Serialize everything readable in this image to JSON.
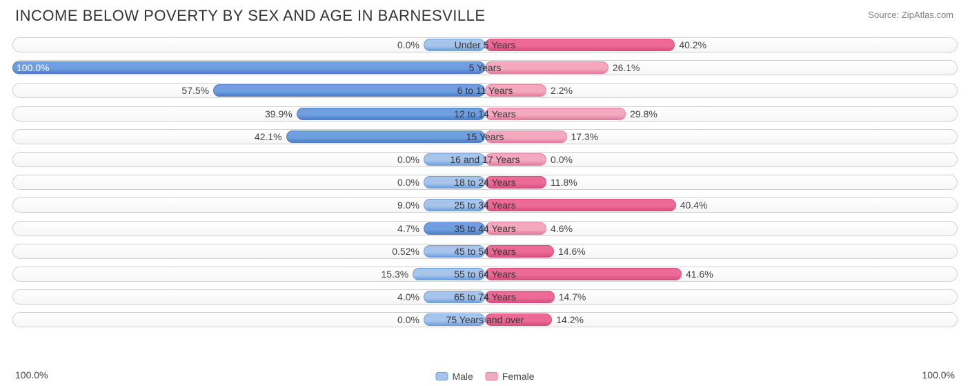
{
  "title": "INCOME BELOW POVERTY BY SEX AND AGE IN BARNESVILLE",
  "source": "Source: ZipAtlas.com",
  "chart": {
    "type": "diverging-bar",
    "axis_max": 100.0,
    "axis_label_left": "100.0%",
    "axis_label_right": "100.0%",
    "title_fontsize": 22,
    "label_fontsize": 14,
    "background_color": "#ffffff",
    "track_border_color": "#d0d0d0",
    "track_fill_top": "#ffffff",
    "track_fill_bottom": "#f6f6f6",
    "text_color": "#444444",
    "min_bar_pct": 13.0,
    "male": {
      "label": "Male",
      "fill": "#a7c4ea",
      "border": "#6f9fde",
      "highlight_fill": "#6f9fde",
      "highlight_border": "#4d7fc8"
    },
    "female": {
      "label": "Female",
      "fill": "#f3aac1",
      "border": "#e77ca0",
      "highlight_fill": "#ec6a95",
      "highlight_border": "#d94e7d"
    },
    "rows": [
      {
        "category": "Under 5 Years",
        "male": 0.0,
        "female": 40.2,
        "male_label": "0.0%",
        "female_label": "40.2%",
        "female_hl": true
      },
      {
        "category": "5 Years",
        "male": 100.0,
        "female": 26.1,
        "male_label": "100.0%",
        "female_label": "26.1%",
        "male_hl": true
      },
      {
        "category": "6 to 11 Years",
        "male": 57.5,
        "female": 2.2,
        "male_label": "57.5%",
        "female_label": "2.2%",
        "male_hl": true
      },
      {
        "category": "12 to 14 Years",
        "male": 39.9,
        "female": 29.8,
        "male_label": "39.9%",
        "female_label": "29.8%",
        "male_hl": true
      },
      {
        "category": "15 Years",
        "male": 42.1,
        "female": 17.3,
        "male_label": "42.1%",
        "female_label": "17.3%",
        "male_hl": true
      },
      {
        "category": "16 and 17 Years",
        "male": 0.0,
        "female": 0.0,
        "male_label": "0.0%",
        "female_label": "0.0%"
      },
      {
        "category": "18 to 24 Years",
        "male": 0.0,
        "female": 11.8,
        "male_label": "0.0%",
        "female_label": "11.8%",
        "female_hl": true
      },
      {
        "category": "25 to 34 Years",
        "male": 9.0,
        "female": 40.4,
        "male_label": "9.0%",
        "female_label": "40.4%",
        "female_hl": true
      },
      {
        "category": "35 to 44 Years",
        "male": 4.7,
        "female": 4.6,
        "male_label": "4.7%",
        "female_label": "4.6%",
        "male_hl": true
      },
      {
        "category": "45 to 54 Years",
        "male": 0.52,
        "female": 14.6,
        "male_label": "0.52%",
        "female_label": "14.6%",
        "female_hl": true
      },
      {
        "category": "55 to 64 Years",
        "male": 15.3,
        "female": 41.6,
        "male_label": "15.3%",
        "female_label": "41.6%",
        "female_hl": true
      },
      {
        "category": "65 to 74 Years",
        "male": 4.0,
        "female": 14.7,
        "male_label": "4.0%",
        "female_label": "14.7%",
        "female_hl": true
      },
      {
        "category": "75 Years and over",
        "male": 0.0,
        "female": 14.2,
        "male_label": "0.0%",
        "female_label": "14.2%",
        "female_hl": true
      }
    ]
  }
}
